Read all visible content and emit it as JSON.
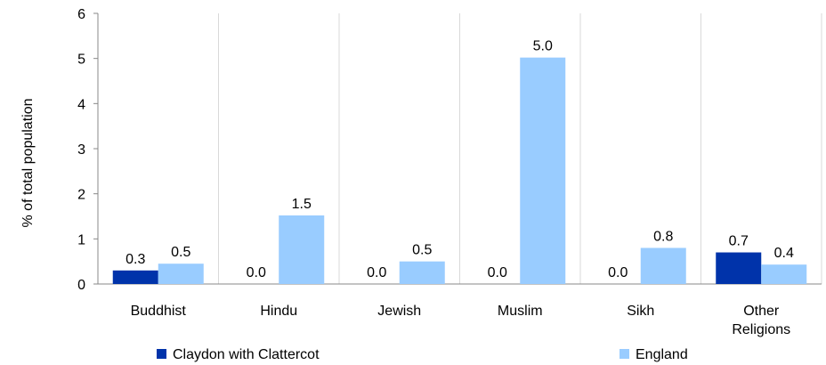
{
  "chart_data": {
    "type": "bar",
    "categories": [
      "Buddhist",
      "Hindu",
      "Jewish",
      "Muslim",
      "Sikh",
      "Other Religions"
    ],
    "category_lines": [
      [
        "Buddhist"
      ],
      [
        "Hindu"
      ],
      [
        "Jewish"
      ],
      [
        "Muslim"
      ],
      [
        "Sikh"
      ],
      [
        "Other",
        "Religions"
      ]
    ],
    "series": [
      {
        "name": "Claydon with Clattercot",
        "color": "#0033aa",
        "values": [
          0.3,
          0.0,
          0.0,
          0.0,
          0.0,
          0.7
        ],
        "labels": [
          "0.3",
          "0.0",
          "0.0",
          "0.0",
          "0.0",
          "0.7"
        ]
      },
      {
        "name": "England",
        "color": "#99ccff",
        "values": [
          0.45,
          1.52,
          0.5,
          5.02,
          0.8,
          0.43
        ],
        "labels": [
          "0.5",
          "1.5",
          "0.5",
          "5.0",
          "0.8",
          "0.4"
        ]
      }
    ],
    "ylabel": "% of total population",
    "ylim": [
      0,
      6
    ],
    "yticks": [
      "0",
      "1",
      "2",
      "3",
      "4",
      "5",
      "6"
    ],
    "grid": "vertical category separators",
    "legend": "bottom"
  }
}
